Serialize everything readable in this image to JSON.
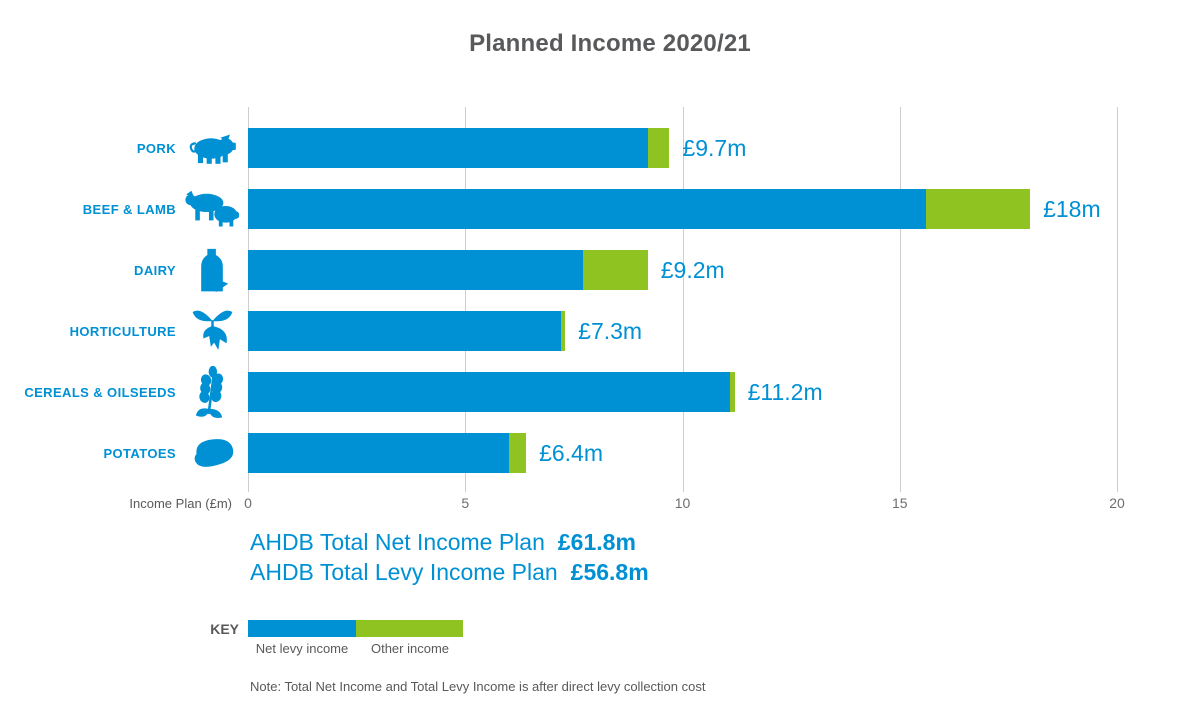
{
  "title": "Planned Income 2020/21",
  "colors": {
    "net_levy_blue": "#0090d4",
    "other_green": "#8fc321",
    "text_dark": "#58595b",
    "tick_gray": "#6d6e71",
    "grid_gray": "#cdcdcd"
  },
  "chart_data": {
    "type": "bar",
    "orientation": "horizontal",
    "stacked": true,
    "title": "Planned Income 2020/21",
    "xlabel": "Income Plan (£m)",
    "xlim": [
      0,
      20
    ],
    "xticks": [
      0,
      5,
      10,
      15,
      20
    ],
    "grid": true,
    "categories": [
      "PORK",
      "BEEF & LAMB",
      "DAIRY",
      "HORTICULTURE",
      "CEREALS & OILSEEDS",
      "POTATOES"
    ],
    "icons": [
      "pig-icon",
      "cow-sheep-icon",
      "milk-bottle-icon",
      "seedling-icon",
      "wheat-icon",
      "potato-icon"
    ],
    "series": [
      {
        "name": "Net levy income",
        "color": "#0090d4",
        "values": [
          9.2,
          15.6,
          7.7,
          7.2,
          11.1,
          6.0
        ]
      },
      {
        "name": "Other income",
        "color": "#8fc321",
        "values": [
          0.5,
          2.4,
          1.5,
          0.1,
          0.1,
          0.4
        ]
      }
    ],
    "totals": [
      "£9.7m",
      "£18m",
      "£9.2m",
      "£7.3m",
      "£11.2m",
      "£6.4m"
    ]
  },
  "summary": {
    "net_income_label": "AHDB Total Net Income Plan",
    "net_income_value": "£61.8m",
    "levy_income_label": "AHDB Total Levy Income Plan",
    "levy_income_value": "£56.8m"
  },
  "key": {
    "label": "KEY",
    "items": [
      {
        "label": "Net levy income",
        "color": "#0090d4"
      },
      {
        "label": "Other income",
        "color": "#8fc321"
      }
    ]
  },
  "note": "Note: Total Net Income and Total Levy Income is after direct levy collection cost"
}
